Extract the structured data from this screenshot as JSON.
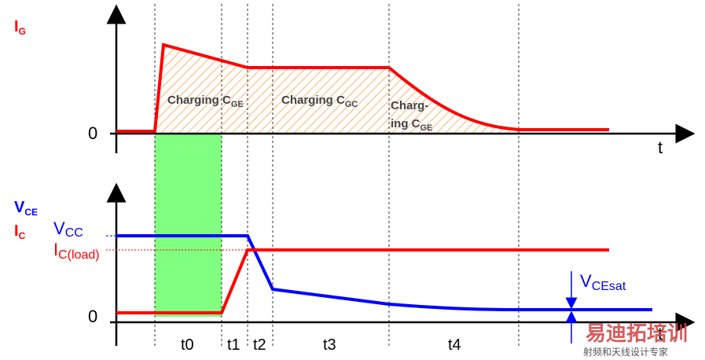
{
  "top_plot": {
    "y_label": {
      "main": "I",
      "sub": "G"
    },
    "zero": "0",
    "x_label": "t",
    "regions": [
      {
        "main": "Charging C",
        "sub": "GE"
      },
      {
        "main": "Charging C",
        "sub": "GC"
      },
      {
        "line1": "Charg-",
        "main": "ing C",
        "sub": "GE"
      }
    ]
  },
  "bottom_plot": {
    "y_label_1": {
      "main": "V",
      "sub": "CE"
    },
    "y_label_2": {
      "main": "I",
      "sub": "C"
    },
    "zero": "0",
    "x_label": "t",
    "vcc": {
      "main": "V",
      "sub": "CC"
    },
    "ic_load": {
      "main": "I",
      "sub": "C(load)"
    },
    "vcesat": {
      "main": "V",
      "sub": "CEsat"
    },
    "intervals": [
      "t0",
      "t1",
      "t2",
      "t3",
      "t4"
    ]
  },
  "watermark": {
    "brand": "易迪拓培训",
    "tagline": "射频和天线设计专家"
  }
}
